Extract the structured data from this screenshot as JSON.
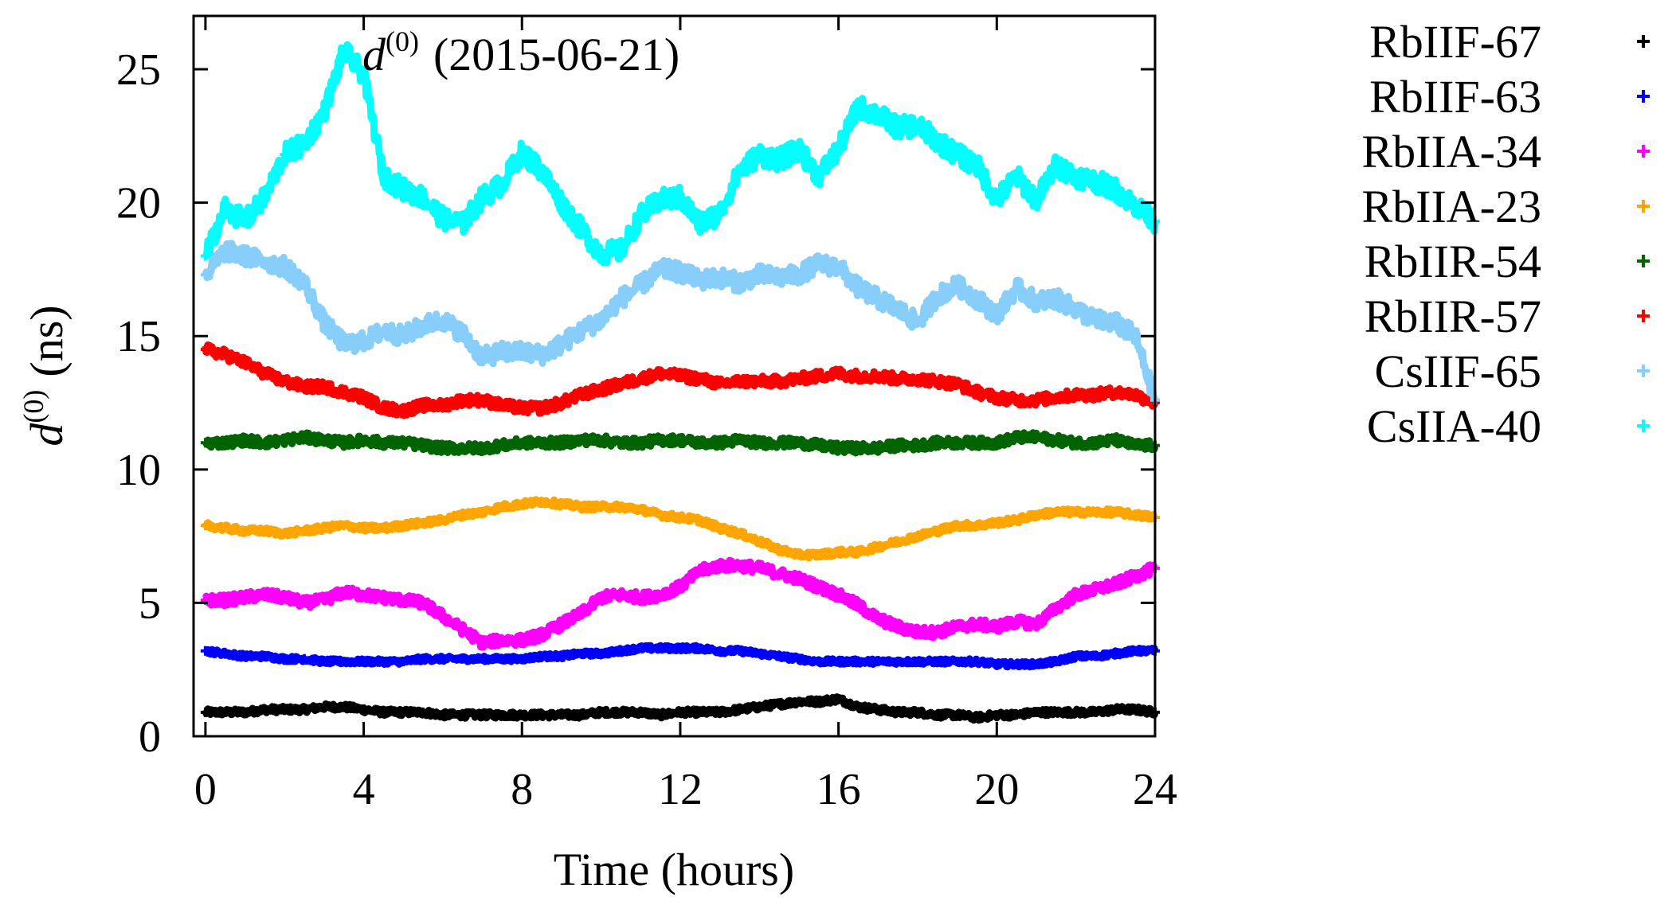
{
  "chart_data": {
    "type": "line",
    "title": "d(0) (2015-06-21)",
    "title_parts": {
      "symbol": "d",
      "superscript": "(0)",
      "date": "(2015-06-21)"
    },
    "xlabel": "Time (hours)",
    "ylabel": "d(0) (ns)",
    "ylabel_parts": {
      "symbol": "d",
      "superscript": "(0)",
      "unit": "(ns)"
    },
    "xlim": [
      -0.3,
      24
    ],
    "ylim": [
      0,
      27
    ],
    "xticks": [
      0,
      4,
      8,
      12,
      16,
      20,
      24
    ],
    "yticks": [
      0,
      5,
      10,
      15,
      20,
      25
    ],
    "legend_position": "outside-right",
    "marker": "plus",
    "x": [
      0,
      0.5,
      1,
      1.5,
      2,
      2.5,
      3,
      3.5,
      4,
      4.5,
      5,
      5.5,
      6,
      6.5,
      7,
      7.5,
      8,
      8.5,
      9,
      9.5,
      10,
      10.5,
      11,
      11.5,
      12,
      12.5,
      13,
      13.5,
      14,
      14.5,
      15,
      15.5,
      16,
      16.5,
      17,
      17.5,
      18,
      18.5,
      19,
      19.5,
      20,
      20.5,
      21,
      21.5,
      22,
      22.5,
      23,
      23.5,
      24
    ],
    "series": [
      {
        "name": "RbIIF-67",
        "color": "#000000",
        "values": [
          0.9,
          0.9,
          0.9,
          1.0,
          1.0,
          1.0,
          1.1,
          1.1,
          1.0,
          0.9,
          0.9,
          0.9,
          0.8,
          0.8,
          0.8,
          0.8,
          0.8,
          0.8,
          0.8,
          0.8,
          0.9,
          0.9,
          0.9,
          0.8,
          0.9,
          0.9,
          0.9,
          1.0,
          1.1,
          1.2,
          1.3,
          1.3,
          1.4,
          1.1,
          1.0,
          0.9,
          0.9,
          0.8,
          0.8,
          0.7,
          0.8,
          0.8,
          0.9,
          0.9,
          0.9,
          0.9,
          1.0,
          1.0,
          0.9
        ]
      },
      {
        "name": "RbIIF-63",
        "color": "#0000ff",
        "values": [
          3.2,
          3.1,
          3.0,
          3.0,
          2.9,
          2.9,
          2.8,
          2.8,
          2.8,
          2.8,
          2.8,
          2.9,
          2.9,
          2.9,
          2.9,
          2.9,
          2.9,
          3.0,
          3.0,
          3.1,
          3.1,
          3.2,
          3.3,
          3.3,
          3.3,
          3.3,
          3.2,
          3.2,
          3.1,
          3.0,
          2.9,
          2.8,
          2.8,
          2.8,
          2.8,
          2.8,
          2.8,
          2.8,
          2.8,
          2.8,
          2.7,
          2.7,
          2.7,
          2.8,
          3.0,
          3.0,
          3.1,
          3.2,
          3.2
        ]
      },
      {
        "name": "RbIIA-34",
        "color": "#ff00ff",
        "values": [
          5.1,
          5.1,
          5.2,
          5.3,
          5.2,
          5.0,
          5.1,
          5.4,
          5.3,
          5.2,
          5.1,
          5.0,
          4.5,
          4.0,
          3.5,
          3.6,
          3.6,
          3.8,
          4.2,
          4.6,
          5.2,
          5.3,
          5.2,
          5.3,
          5.6,
          6.2,
          6.4,
          6.4,
          6.3,
          6.1,
          5.9,
          5.6,
          5.3,
          4.9,
          4.4,
          4.1,
          3.9,
          3.9,
          4.1,
          4.2,
          4.1,
          4.3,
          4.2,
          4.8,
          5.3,
          5.5,
          5.7,
          6.0,
          6.3
        ]
      },
      {
        "name": "RbIIA-23",
        "color": "#ffa500",
        "values": [
          7.9,
          7.8,
          7.7,
          7.7,
          7.6,
          7.7,
          7.8,
          7.9,
          7.8,
          7.8,
          7.9,
          8.0,
          8.1,
          8.3,
          8.4,
          8.6,
          8.7,
          8.8,
          8.7,
          8.6,
          8.6,
          8.6,
          8.5,
          8.3,
          8.2,
          8.1,
          7.8,
          7.6,
          7.3,
          7.0,
          6.8,
          6.8,
          6.9,
          6.9,
          7.1,
          7.3,
          7.5,
          7.7,
          7.9,
          7.9,
          8.0,
          8.1,
          8.3,
          8.4,
          8.4,
          8.4,
          8.4,
          8.3,
          8.2
        ]
      },
      {
        "name": "RbIIR-54",
        "color": "#006400",
        "values": [
          11.0,
          11.0,
          11.1,
          11.0,
          11.1,
          11.2,
          11.1,
          11.0,
          11.1,
          11.0,
          11.0,
          10.9,
          10.8,
          10.8,
          10.8,
          10.9,
          11.0,
          11.0,
          11.0,
          11.1,
          11.1,
          11.0,
          11.0,
          11.1,
          11.1,
          11.0,
          11.0,
          11.1,
          11.0,
          11.0,
          11.0,
          10.9,
          10.8,
          10.8,
          10.8,
          10.9,
          10.9,
          11.0,
          11.0,
          11.0,
          11.0,
          11.2,
          11.2,
          11.1,
          11.0,
          11.0,
          11.1,
          10.9,
          10.9
        ]
      },
      {
        "name": "RbIIR-57",
        "color": "#ff0000",
        "values": [
          14.5,
          14.3,
          14.0,
          13.6,
          13.3,
          13.1,
          13.1,
          12.9,
          12.7,
          12.3,
          12.2,
          12.4,
          12.4,
          12.6,
          12.6,
          12.4,
          12.3,
          12.3,
          12.5,
          12.8,
          13.0,
          13.2,
          13.4,
          13.6,
          13.5,
          13.4,
          13.2,
          13.3,
          13.3,
          13.3,
          13.4,
          13.5,
          13.6,
          13.5,
          13.5,
          13.4,
          13.4,
          13.3,
          13.2,
          12.9,
          12.7,
          12.6,
          12.6,
          12.7,
          12.8,
          12.8,
          12.9,
          12.8,
          12.5
        ]
      },
      {
        "name": "CsIIF-65",
        "color": "#87cefa",
        "values": [
          17.3,
          18.2,
          18.0,
          17.8,
          17.6,
          17.0,
          15.5,
          14.7,
          14.8,
          15.2,
          15.0,
          15.4,
          15.6,
          15.1,
          14.2,
          14.4,
          14.4,
          14.3,
          14.7,
          15.2,
          15.6,
          16.4,
          16.9,
          17.5,
          17.4,
          17.1,
          17.2,
          17.0,
          17.3,
          17.2,
          17.3,
          17.7,
          17.6,
          16.8,
          16.4,
          16.0,
          15.5,
          16.5,
          16.9,
          16.4,
          15.8,
          16.8,
          16.3,
          16.4,
          16.0,
          15.6,
          15.5,
          15.0,
          12.6
        ]
      },
      {
        "name": "CsIIA-40",
        "color": "#00ffff",
        "values": [
          18.0,
          19.8,
          19.3,
          20.2,
          21.8,
          22.2,
          23.4,
          25.7,
          24.8,
          21.0,
          20.5,
          20.2,
          19.4,
          19.2,
          20.2,
          20.7,
          21.9,
          21.2,
          20.0,
          19.0,
          18.1,
          18.2,
          19.5,
          20.1,
          20.2,
          19.2,
          19.6,
          21.2,
          21.8,
          21.6,
          22.0,
          21.0,
          22.0,
          23.6,
          23.3,
          22.8,
          22.9,
          22.3,
          21.8,
          21.4,
          20.1,
          21.0,
          20.1,
          21.4,
          21.0,
          20.8,
          20.5,
          19.9,
          19.3
        ]
      }
    ]
  }
}
